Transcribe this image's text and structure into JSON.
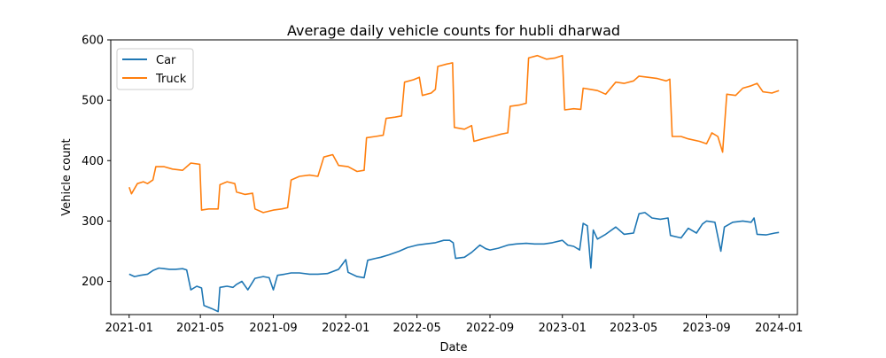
{
  "chart_data": {
    "type": "line",
    "title": "Average daily vehicle counts for hubli dharwad",
    "xlabel": "Date",
    "ylabel": "Vehicle count",
    "xlim": [
      "2020-12-01",
      "2024-02-01"
    ],
    "ylim": [
      145,
      600
    ],
    "x_ticks": [
      "2021-01",
      "2021-05",
      "2021-09",
      "2022-01",
      "2022-05",
      "2022-09",
      "2023-01",
      "2023-05",
      "2023-09",
      "2024-01"
    ],
    "y_ticks": [
      200,
      300,
      400,
      500,
      600
    ],
    "grid": false,
    "legend_position": "upper-left",
    "series": [
      {
        "name": "Car",
        "color": "#1f77b4",
        "points": [
          [
            "2021-01-01",
            212
          ],
          [
            "2021-01-10",
            208
          ],
          [
            "2021-01-20",
            210
          ],
          [
            "2021-02-01",
            212
          ],
          [
            "2021-02-10",
            218
          ],
          [
            "2021-02-20",
            222
          ],
          [
            "2021-03-01",
            221
          ],
          [
            "2021-03-10",
            220
          ],
          [
            "2021-03-20",
            220
          ],
          [
            "2021-04-01",
            221
          ],
          [
            "2021-04-08",
            219
          ],
          [
            "2021-04-15",
            186
          ],
          [
            "2021-04-25",
            192
          ],
          [
            "2021-05-03",
            189
          ],
          [
            "2021-05-07",
            160
          ],
          [
            "2021-05-20",
            155
          ],
          [
            "2021-05-31",
            150
          ],
          [
            "2021-06-03",
            190
          ],
          [
            "2021-06-15",
            192
          ],
          [
            "2021-06-25",
            190
          ],
          [
            "2021-07-01",
            195
          ],
          [
            "2021-07-10",
            200
          ],
          [
            "2021-07-20",
            186
          ],
          [
            "2021-08-01",
            205
          ],
          [
            "2021-08-15",
            208
          ],
          [
            "2021-08-25",
            206
          ],
          [
            "2021-09-01",
            186
          ],
          [
            "2021-09-08",
            210
          ],
          [
            "2021-09-20",
            212
          ],
          [
            "2021-10-01",
            214
          ],
          [
            "2021-10-15",
            214
          ],
          [
            "2021-11-01",
            212
          ],
          [
            "2021-11-15",
            212
          ],
          [
            "2021-12-01",
            213
          ],
          [
            "2021-12-20",
            220
          ],
          [
            "2022-01-01",
            236
          ],
          [
            "2022-01-05",
            215
          ],
          [
            "2022-01-20",
            208
          ],
          [
            "2022-02-01",
            206
          ],
          [
            "2022-02-07",
            235
          ],
          [
            "2022-02-20",
            238
          ],
          [
            "2022-03-01",
            240
          ],
          [
            "2022-03-15",
            244
          ],
          [
            "2022-04-01",
            250
          ],
          [
            "2022-04-15",
            256
          ],
          [
            "2022-05-01",
            260
          ],
          [
            "2022-05-15",
            262
          ],
          [
            "2022-06-01",
            264
          ],
          [
            "2022-06-15",
            268
          ],
          [
            "2022-06-25",
            268
          ],
          [
            "2022-07-01",
            264
          ],
          [
            "2022-07-05",
            238
          ],
          [
            "2022-07-20",
            240
          ],
          [
            "2022-08-01",
            248
          ],
          [
            "2022-08-15",
            260
          ],
          [
            "2022-08-25",
            254
          ],
          [
            "2022-09-01",
            252
          ],
          [
            "2022-09-15",
            255
          ],
          [
            "2022-10-01",
            260
          ],
          [
            "2022-10-15",
            262
          ],
          [
            "2022-11-01",
            263
          ],
          [
            "2022-11-15",
            262
          ],
          [
            "2022-12-01",
            262
          ],
          [
            "2022-12-15",
            264
          ],
          [
            "2023-01-01",
            268
          ],
          [
            "2023-01-10",
            260
          ],
          [
            "2023-01-20",
            258
          ],
          [
            "2023-01-30",
            252
          ],
          [
            "2023-02-05",
            296
          ],
          [
            "2023-02-12",
            292
          ],
          [
            "2023-02-18",
            222
          ],
          [
            "2023-02-22",
            285
          ],
          [
            "2023-03-01",
            270
          ],
          [
            "2023-03-15",
            278
          ],
          [
            "2023-04-01",
            290
          ],
          [
            "2023-04-15",
            278
          ],
          [
            "2023-05-01",
            280
          ],
          [
            "2023-05-10",
            312
          ],
          [
            "2023-05-20",
            314
          ],
          [
            "2023-06-01",
            305
          ],
          [
            "2023-06-15",
            303
          ],
          [
            "2023-06-28",
            305
          ],
          [
            "2023-07-02",
            276
          ],
          [
            "2023-07-20",
            272
          ],
          [
            "2023-08-01",
            288
          ],
          [
            "2023-08-15",
            280
          ],
          [
            "2023-08-25",
            295
          ],
          [
            "2023-09-01",
            300
          ],
          [
            "2023-09-15",
            298
          ],
          [
            "2023-09-25",
            250
          ],
          [
            "2023-10-01",
            290
          ],
          [
            "2023-10-15",
            298
          ],
          [
            "2023-11-01",
            300
          ],
          [
            "2023-11-15",
            298
          ],
          [
            "2023-11-20",
            305
          ],
          [
            "2023-11-25",
            278
          ],
          [
            "2023-12-10",
            277
          ],
          [
            "2023-12-25",
            280
          ],
          [
            "2024-01-01",
            281
          ]
        ]
      },
      {
        "name": "Truck",
        "color": "#ff7f0e",
        "points": [
          [
            "2021-01-01",
            356
          ],
          [
            "2021-01-05",
            345
          ],
          [
            "2021-01-15",
            362
          ],
          [
            "2021-01-25",
            365
          ],
          [
            "2021-02-01",
            362
          ],
          [
            "2021-02-10",
            368
          ],
          [
            "2021-02-15",
            390
          ],
          [
            "2021-03-01",
            390
          ],
          [
            "2021-03-15",
            386
          ],
          [
            "2021-04-01",
            384
          ],
          [
            "2021-04-15",
            396
          ],
          [
            "2021-04-30",
            394
          ],
          [
            "2021-05-03",
            318
          ],
          [
            "2021-05-15",
            320
          ],
          [
            "2021-05-31",
            320
          ],
          [
            "2021-06-03",
            360
          ],
          [
            "2021-06-15",
            365
          ],
          [
            "2021-06-28",
            362
          ],
          [
            "2021-07-01",
            348
          ],
          [
            "2021-07-15",
            344
          ],
          [
            "2021-07-28",
            346
          ],
          [
            "2021-08-01",
            320
          ],
          [
            "2021-08-15",
            314
          ],
          [
            "2021-09-01",
            318
          ],
          [
            "2021-09-15",
            320
          ],
          [
            "2021-09-25",
            322
          ],
          [
            "2021-10-01",
            368
          ],
          [
            "2021-10-15",
            374
          ],
          [
            "2021-11-01",
            376
          ],
          [
            "2021-11-15",
            374
          ],
          [
            "2021-11-25",
            406
          ],
          [
            "2021-12-10",
            410
          ],
          [
            "2021-12-20",
            392
          ],
          [
            "2022-01-05",
            390
          ],
          [
            "2022-01-20",
            382
          ],
          [
            "2022-02-01",
            384
          ],
          [
            "2022-02-05",
            438
          ],
          [
            "2022-02-20",
            440
          ],
          [
            "2022-03-05",
            442
          ],
          [
            "2022-03-10",
            470
          ],
          [
            "2022-03-25",
            472
          ],
          [
            "2022-04-05",
            474
          ],
          [
            "2022-04-10",
            530
          ],
          [
            "2022-04-25",
            534
          ],
          [
            "2022-05-05",
            538
          ],
          [
            "2022-05-10",
            508
          ],
          [
            "2022-05-25",
            512
          ],
          [
            "2022-06-01",
            518
          ],
          [
            "2022-06-05",
            556
          ],
          [
            "2022-06-20",
            560
          ],
          [
            "2022-06-30",
            562
          ],
          [
            "2022-07-03",
            455
          ],
          [
            "2022-07-20",
            452
          ],
          [
            "2022-08-01",
            458
          ],
          [
            "2022-08-05",
            432
          ],
          [
            "2022-08-20",
            436
          ],
          [
            "2022-09-05",
            440
          ],
          [
            "2022-09-20",
            444
          ],
          [
            "2022-10-01",
            446
          ],
          [
            "2022-10-05",
            490
          ],
          [
            "2022-10-20",
            492
          ],
          [
            "2022-11-01",
            495
          ],
          [
            "2022-11-05",
            570
          ],
          [
            "2022-11-20",
            574
          ],
          [
            "2022-12-05",
            568
          ],
          [
            "2022-12-20",
            570
          ],
          [
            "2023-01-01",
            574
          ],
          [
            "2023-01-05",
            484
          ],
          [
            "2023-01-20",
            486
          ],
          [
            "2023-02-01",
            485
          ],
          [
            "2023-02-05",
            520
          ],
          [
            "2023-02-18",
            518
          ],
          [
            "2023-03-01",
            516
          ],
          [
            "2023-03-15",
            510
          ],
          [
            "2023-04-01",
            530
          ],
          [
            "2023-04-15",
            528
          ],
          [
            "2023-05-01",
            532
          ],
          [
            "2023-05-10",
            540
          ],
          [
            "2023-05-25",
            538
          ],
          [
            "2023-06-10",
            536
          ],
          [
            "2023-06-25",
            532
          ],
          [
            "2023-07-01",
            535
          ],
          [
            "2023-07-05",
            440
          ],
          [
            "2023-07-20",
            440
          ],
          [
            "2023-08-01",
            436
          ],
          [
            "2023-08-20",
            432
          ],
          [
            "2023-09-01",
            428
          ],
          [
            "2023-09-10",
            446
          ],
          [
            "2023-09-20",
            440
          ],
          [
            "2023-09-28",
            414
          ],
          [
            "2023-10-05",
            510
          ],
          [
            "2023-10-20",
            508
          ],
          [
            "2023-11-01",
            520
          ],
          [
            "2023-11-15",
            524
          ],
          [
            "2023-11-25",
            528
          ],
          [
            "2023-12-05",
            514
          ],
          [
            "2023-12-20",
            512
          ],
          [
            "2024-01-01",
            516
          ]
        ]
      }
    ]
  }
}
